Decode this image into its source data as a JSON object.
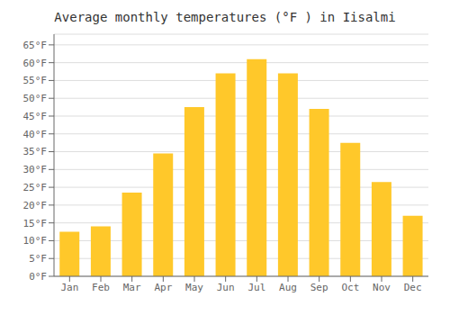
{
  "chart_data": {
    "type": "bar",
    "title": "Average monthly temperatures (°F ) in Iisalmi",
    "categories": [
      "Jan",
      "Feb",
      "Mar",
      "Apr",
      "May",
      "Jun",
      "Jul",
      "Aug",
      "Sep",
      "Oct",
      "Nov",
      "Dec"
    ],
    "values": [
      12.5,
      14,
      23.5,
      34.5,
      47.5,
      57,
      61,
      57,
      47,
      37.5,
      26.5,
      17
    ],
    "color": "#FFC82A",
    "ylim": [
      0,
      68
    ],
    "yticks": [
      {
        "value": 0,
        "label": "0°F"
      },
      {
        "value": 5,
        "label": "5°F"
      },
      {
        "value": 10,
        "label": "10°F"
      },
      {
        "value": 15,
        "label": "15°F"
      },
      {
        "value": 20,
        "label": "20°F"
      },
      {
        "value": 25,
        "label": "25°F"
      },
      {
        "value": 30,
        "label": "30°F"
      },
      {
        "value": 35,
        "label": "35°F"
      },
      {
        "value": 40,
        "label": "40°F"
      },
      {
        "value": 45,
        "label": "45°F"
      },
      {
        "value": 50,
        "label": "50°F"
      },
      {
        "value": 55,
        "label": "55°F"
      },
      {
        "value": 60,
        "label": "60°F"
      },
      {
        "value": 65,
        "label": "65°F"
      }
    ],
    "grid": true
  }
}
